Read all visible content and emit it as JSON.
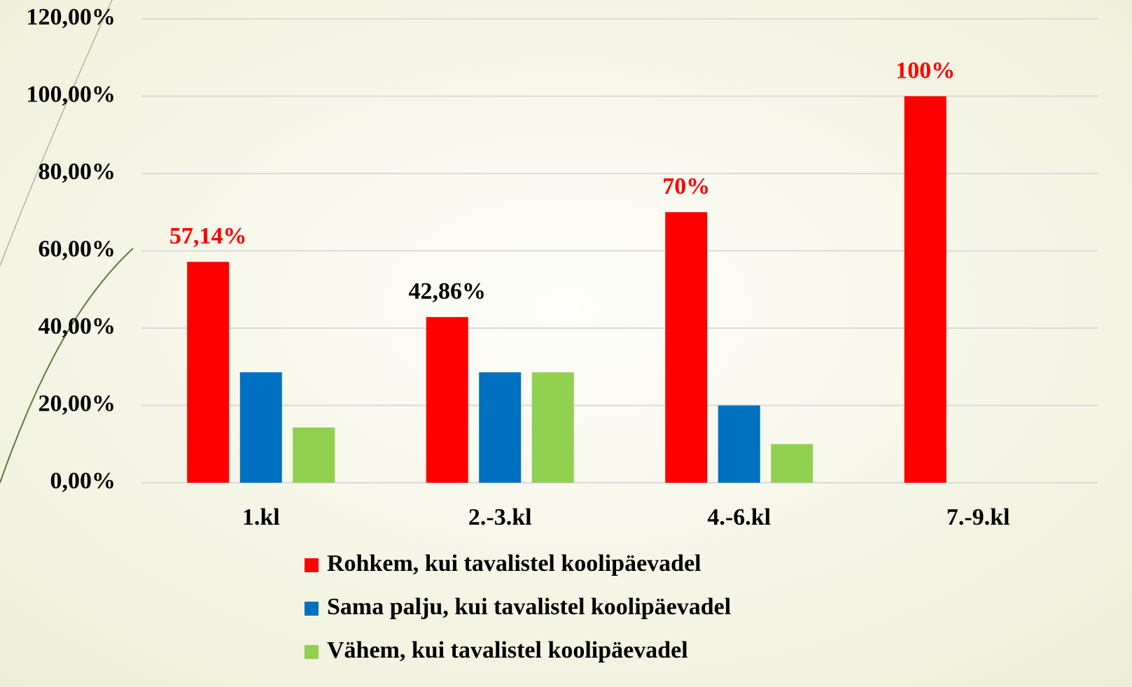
{
  "chart_data": {
    "type": "bar",
    "categories": [
      "1.kl",
      "2.-3.kl",
      "4.-6.kl",
      "7.-9.kl"
    ],
    "series": [
      {
        "name": "Rohkem, kui tavalistel koolipäevadel",
        "color": "#ff0000",
        "values": [
          57.14,
          42.86,
          70,
          100
        ],
        "value_labels": [
          "57,14%",
          "42,86%",
          "70%",
          "100%"
        ],
        "value_label_colors": [
          "#ff0000",
          "#000000",
          "#ff0000",
          "#ff0000"
        ]
      },
      {
        "name": "Sama palju, kui tavalistel koolipäevadel",
        "color": "#0070c0",
        "values": [
          28.57,
          28.57,
          20,
          0
        ]
      },
      {
        "name": "Vähem, kui tavalistel koolipäevadel",
        "color": "#92d050",
        "values": [
          14.29,
          28.57,
          10,
          0
        ]
      }
    ],
    "ylim": [
      0,
      120
    ],
    "yticks": [
      {
        "value": 0,
        "label": "0,00%"
      },
      {
        "value": 20,
        "label": "20,00%"
      },
      {
        "value": 40,
        "label": "40,00%"
      },
      {
        "value": 60,
        "label": "60,00%"
      },
      {
        "value": 80,
        "label": "80,00%"
      },
      {
        "value": 100,
        "label": "100,00%"
      },
      {
        "value": 120,
        "label": "120,00%"
      }
    ],
    "grid": true,
    "legend": "bottom"
  }
}
